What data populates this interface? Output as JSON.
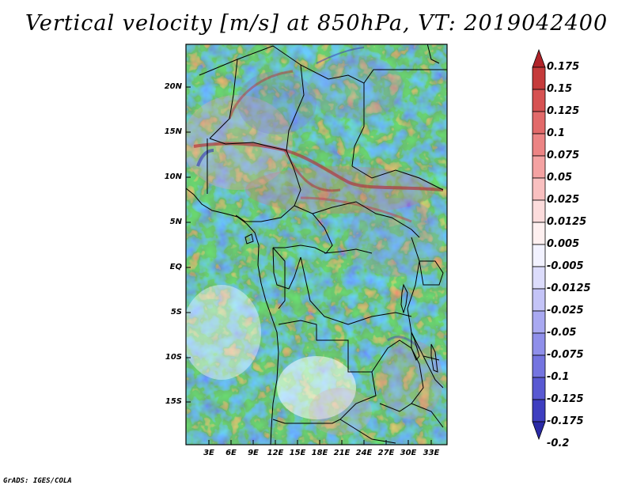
{
  "title": "Vertical velocity [m/s] at 850hPa, VT: 2019042400",
  "footer": "GrADS: IGES/COLA",
  "map": {
    "lat_labels": [
      "20N",
      "15N",
      "10N",
      "5N",
      "EQ",
      "5S",
      "10S",
      "15S"
    ],
    "lon_labels": [
      "3E",
      "6E",
      "9E",
      "12E",
      "15E",
      "18E",
      "21E",
      "24E",
      "27E",
      "30E",
      "33E"
    ]
  },
  "colorbar": {
    "labels": [
      "0.175",
      "0.15",
      "0.125",
      "0.1",
      "0.075",
      "0.05",
      "0.025",
      "0.0125",
      "0.005",
      "-0.005",
      "-0.0125",
      "-0.025",
      "-0.05",
      "-0.075",
      "-0.1",
      "-0.125",
      "-0.175",
      "-0.2"
    ],
    "colors": [
      "#b0242a",
      "#c53b3b",
      "#d65252",
      "#e26a6a",
      "#ec8484",
      "#f4a2a2",
      "#f9c0c0",
      "#fcdcdc",
      "#fef0f0",
      "#f2f2ff",
      "#dcdcfb",
      "#c4c4f7",
      "#a9a9f1",
      "#8f8fea",
      "#7474e0",
      "#5959d2",
      "#3e3ec0",
      "#2a2aa6"
    ]
  }
}
